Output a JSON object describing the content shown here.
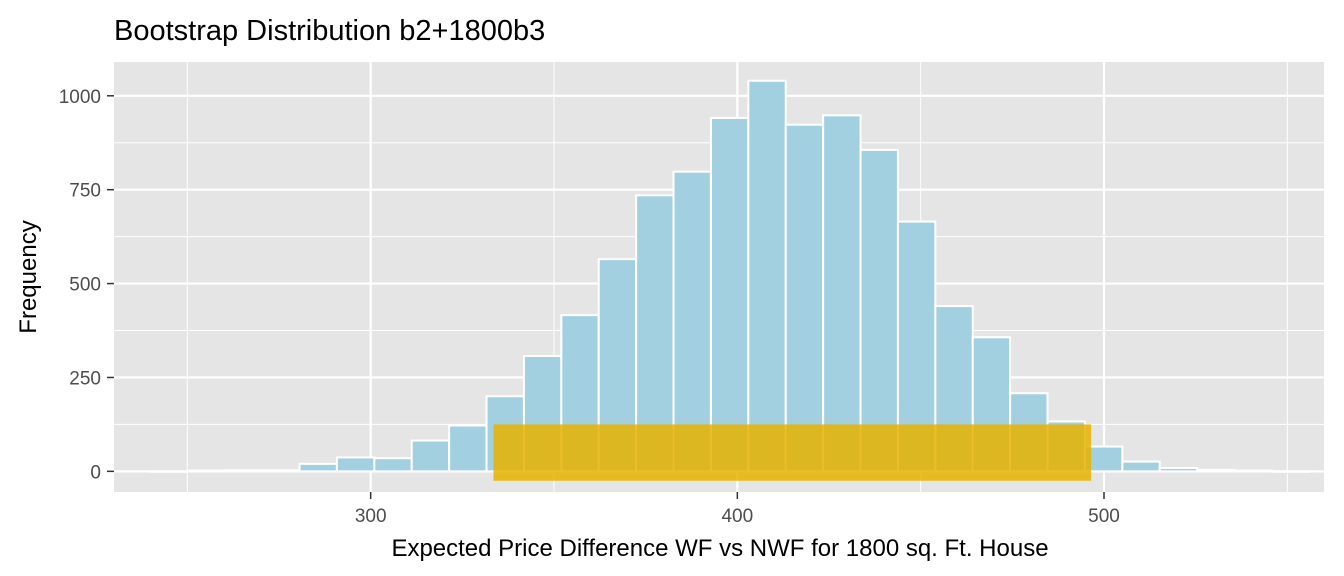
{
  "chart_data": {
    "type": "bar",
    "title": "Bootstrap Distribution b2+1800b3",
    "xlabel": "Expected Price Difference WF vs NWF for 1800 sq. Ft. House",
    "ylabel": "Frequency",
    "xlim": [
      230,
      560
    ],
    "ylim": [
      -55,
      1090
    ],
    "x_ticks": [
      300,
      400,
      500
    ],
    "y_ticks": [
      0,
      250,
      500,
      750,
      1000
    ],
    "grid": true,
    "legend": "none",
    "bin_width": 10.2,
    "bins": [
      {
        "x0": 239.8,
        "x1": 250.0,
        "count": 0
      },
      {
        "x0": 250.0,
        "x1": 260.2,
        "count": 2
      },
      {
        "x0": 260.2,
        "x1": 270.4,
        "count": 3
      },
      {
        "x0": 270.4,
        "x1": 280.6,
        "count": 3
      },
      {
        "x0": 280.6,
        "x1": 290.8,
        "count": 20
      },
      {
        "x0": 290.8,
        "x1": 301.0,
        "count": 37
      },
      {
        "x0": 301.0,
        "x1": 311.2,
        "count": 35
      },
      {
        "x0": 311.2,
        "x1": 321.4,
        "count": 82
      },
      {
        "x0": 321.4,
        "x1": 331.6,
        "count": 122
      },
      {
        "x0": 331.6,
        "x1": 341.8,
        "count": 200
      },
      {
        "x0": 341.8,
        "x1": 352.0,
        "count": 307
      },
      {
        "x0": 352.0,
        "x1": 362.2,
        "count": 416
      },
      {
        "x0": 362.2,
        "x1": 372.4,
        "count": 565
      },
      {
        "x0": 372.4,
        "x1": 382.6,
        "count": 735
      },
      {
        "x0": 382.6,
        "x1": 392.8,
        "count": 798
      },
      {
        "x0": 392.8,
        "x1": 403.0,
        "count": 941
      },
      {
        "x0": 403.0,
        "x1": 413.2,
        "count": 1040
      },
      {
        "x0": 413.2,
        "x1": 423.4,
        "count": 923
      },
      {
        "x0": 423.4,
        "x1": 433.6,
        "count": 948
      },
      {
        "x0": 433.6,
        "x1": 443.8,
        "count": 856
      },
      {
        "x0": 443.8,
        "x1": 454.0,
        "count": 665
      },
      {
        "x0": 454.0,
        "x1": 464.2,
        "count": 440
      },
      {
        "x0": 464.2,
        "x1": 474.4,
        "count": 357
      },
      {
        "x0": 474.4,
        "x1": 484.6,
        "count": 208
      },
      {
        "x0": 484.6,
        "x1": 494.8,
        "count": 133
      },
      {
        "x0": 494.8,
        "x1": 505.0,
        "count": 66
      },
      {
        "x0": 505.0,
        "x1": 515.2,
        "count": 26
      },
      {
        "x0": 515.2,
        "x1": 525.4,
        "count": 9
      },
      {
        "x0": 525.4,
        "x1": 535.6,
        "count": 4
      },
      {
        "x0": 535.6,
        "x1": 545.8,
        "count": 2
      },
      {
        "x0": 545.8,
        "x1": 556.0,
        "count": 0
      }
    ],
    "interval": {
      "lower": 333.5,
      "upper": 496.5,
      "y_bottom": -25,
      "y_top": 125
    },
    "colors": {
      "panel_background": "#e5e5e5",
      "grid": "#ffffff",
      "bar_fill": "#a3d0e0",
      "bar_outline": "#ffffff",
      "interval_fill": "#e6b300",
      "interval_alpha": 0.85
    }
  }
}
